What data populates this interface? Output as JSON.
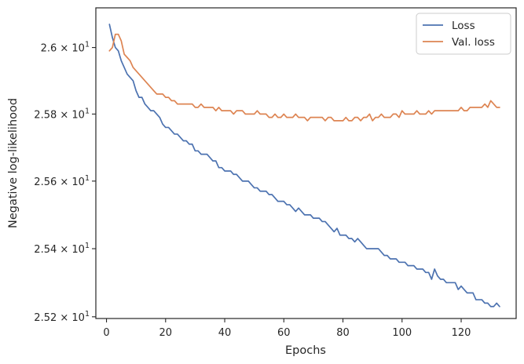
{
  "chart_data": {
    "type": "line",
    "xlabel": "Epochs",
    "ylabel": "Negative log-likelihood",
    "xlim": [
      -3.6,
      138.6
    ],
    "ylim": [
      25.195,
      26.12
    ],
    "y_scale": "log",
    "grid": false,
    "legend_position": "top-right",
    "x_ticks": [
      0,
      20,
      40,
      60,
      80,
      100,
      120
    ],
    "y_ticks": [
      {
        "value": 25.2,
        "mantissa": "2.52",
        "exponent": "1"
      },
      {
        "value": 25.4,
        "mantissa": "2.54",
        "exponent": "1"
      },
      {
        "value": 25.6,
        "mantissa": "2.56",
        "exponent": "1"
      },
      {
        "value": 25.8,
        "mantissa": "2.58",
        "exponent": "1"
      },
      {
        "value": 26.0,
        "mantissa": "2.6",
        "exponent": "1"
      }
    ],
    "series": [
      {
        "name": "Loss",
        "color": "#4c72b0",
        "points": [
          [
            1,
            26.07
          ],
          [
            2,
            26.03
          ],
          [
            3,
            26.0
          ],
          [
            4,
            25.99
          ],
          [
            5,
            25.96
          ],
          [
            6,
            25.94
          ],
          [
            7,
            25.92
          ],
          [
            8,
            25.91
          ],
          [
            9,
            25.9
          ],
          [
            10,
            25.87
          ],
          [
            11,
            25.85
          ],
          [
            12,
            25.85
          ],
          [
            13,
            25.83
          ],
          [
            14,
            25.82
          ],
          [
            15,
            25.81
          ],
          [
            16,
            25.81
          ],
          [
            17,
            25.8
          ],
          [
            18,
            25.79
          ],
          [
            19,
            25.77
          ],
          [
            20,
            25.76
          ],
          [
            21,
            25.76
          ],
          [
            22,
            25.75
          ],
          [
            23,
            25.74
          ],
          [
            24,
            25.74
          ],
          [
            25,
            25.73
          ],
          [
            26,
            25.72
          ],
          [
            27,
            25.72
          ],
          [
            28,
            25.71
          ],
          [
            29,
            25.71
          ],
          [
            30,
            25.69
          ],
          [
            31,
            25.69
          ],
          [
            32,
            25.68
          ],
          [
            33,
            25.68
          ],
          [
            34,
            25.68
          ],
          [
            35,
            25.67
          ],
          [
            36,
            25.66
          ],
          [
            37,
            25.66
          ],
          [
            38,
            25.64
          ],
          [
            39,
            25.64
          ],
          [
            40,
            25.63
          ],
          [
            41,
            25.63
          ],
          [
            42,
            25.63
          ],
          [
            43,
            25.62
          ],
          [
            44,
            25.62
          ],
          [
            45,
            25.61
          ],
          [
            46,
            25.6
          ],
          [
            47,
            25.6
          ],
          [
            48,
            25.6
          ],
          [
            49,
            25.59
          ],
          [
            50,
            25.58
          ],
          [
            51,
            25.58
          ],
          [
            52,
            25.57
          ],
          [
            53,
            25.57
          ],
          [
            54,
            25.57
          ],
          [
            55,
            25.56
          ],
          [
            56,
            25.56
          ],
          [
            57,
            25.55
          ],
          [
            58,
            25.54
          ],
          [
            59,
            25.54
          ],
          [
            60,
            25.54
          ],
          [
            61,
            25.53
          ],
          [
            62,
            25.53
          ],
          [
            63,
            25.52
          ],
          [
            64,
            25.51
          ],
          [
            65,
            25.52
          ],
          [
            66,
            25.51
          ],
          [
            67,
            25.5
          ],
          [
            68,
            25.5
          ],
          [
            69,
            25.5
          ],
          [
            70,
            25.49
          ],
          [
            71,
            25.49
          ],
          [
            72,
            25.49
          ],
          [
            73,
            25.48
          ],
          [
            74,
            25.48
          ],
          [
            75,
            25.47
          ],
          [
            76,
            25.46
          ],
          [
            77,
            25.45
          ],
          [
            78,
            25.46
          ],
          [
            79,
            25.44
          ],
          [
            80,
            25.44
          ],
          [
            81,
            25.44
          ],
          [
            82,
            25.43
          ],
          [
            83,
            25.43
          ],
          [
            84,
            25.42
          ],
          [
            85,
            25.43
          ],
          [
            86,
            25.42
          ],
          [
            87,
            25.41
          ],
          [
            88,
            25.4
          ],
          [
            89,
            25.4
          ],
          [
            90,
            25.4
          ],
          [
            91,
            25.4
          ],
          [
            92,
            25.4
          ],
          [
            93,
            25.39
          ],
          [
            94,
            25.38
          ],
          [
            95,
            25.38
          ],
          [
            96,
            25.37
          ],
          [
            97,
            25.37
          ],
          [
            98,
            25.37
          ],
          [
            99,
            25.36
          ],
          [
            100,
            25.36
          ],
          [
            101,
            25.36
          ],
          [
            102,
            25.35
          ],
          [
            103,
            25.35
          ],
          [
            104,
            25.35
          ],
          [
            105,
            25.34
          ],
          [
            106,
            25.34
          ],
          [
            107,
            25.34
          ],
          [
            108,
            25.33
          ],
          [
            109,
            25.33
          ],
          [
            110,
            25.31
          ],
          [
            111,
            25.34
          ],
          [
            112,
            25.32
          ],
          [
            113,
            25.31
          ],
          [
            114,
            25.31
          ],
          [
            115,
            25.3
          ],
          [
            116,
            25.3
          ],
          [
            117,
            25.3
          ],
          [
            118,
            25.3
          ],
          [
            119,
            25.28
          ],
          [
            120,
            25.29
          ],
          [
            121,
            25.28
          ],
          [
            122,
            25.27
          ],
          [
            123,
            25.27
          ],
          [
            124,
            25.27
          ],
          [
            125,
            25.25
          ],
          [
            126,
            25.25
          ],
          [
            127,
            25.25
          ],
          [
            128,
            25.24
          ],
          [
            129,
            25.24
          ],
          [
            130,
            25.23
          ],
          [
            131,
            25.23
          ],
          [
            132,
            25.24
          ],
          [
            133,
            25.23
          ]
        ]
      },
      {
        "name": "Val. loss",
        "color": "#dd8452",
        "points": [
          [
            1,
            25.99
          ],
          [
            2,
            26.0
          ],
          [
            3,
            26.04
          ],
          [
            4,
            26.04
          ],
          [
            5,
            26.02
          ],
          [
            6,
            25.98
          ],
          [
            7,
            25.97
          ],
          [
            8,
            25.96
          ],
          [
            9,
            25.94
          ],
          [
            10,
            25.93
          ],
          [
            11,
            25.92
          ],
          [
            12,
            25.91
          ],
          [
            13,
            25.9
          ],
          [
            14,
            25.89
          ],
          [
            15,
            25.88
          ],
          [
            16,
            25.87
          ],
          [
            17,
            25.86
          ],
          [
            18,
            25.86
          ],
          [
            19,
            25.86
          ],
          [
            20,
            25.85
          ],
          [
            21,
            25.85
          ],
          [
            22,
            25.84
          ],
          [
            23,
            25.84
          ],
          [
            24,
            25.83
          ],
          [
            25,
            25.83
          ],
          [
            26,
            25.83
          ],
          [
            27,
            25.83
          ],
          [
            28,
            25.83
          ],
          [
            29,
            25.83
          ],
          [
            30,
            25.82
          ],
          [
            31,
            25.82
          ],
          [
            32,
            25.83
          ],
          [
            33,
            25.82
          ],
          [
            34,
            25.82
          ],
          [
            35,
            25.82
          ],
          [
            36,
            25.82
          ],
          [
            37,
            25.81
          ],
          [
            38,
            25.82
          ],
          [
            39,
            25.81
          ],
          [
            40,
            25.81
          ],
          [
            41,
            25.81
          ],
          [
            42,
            25.81
          ],
          [
            43,
            25.8
          ],
          [
            44,
            25.81
          ],
          [
            45,
            25.81
          ],
          [
            46,
            25.81
          ],
          [
            47,
            25.8
          ],
          [
            48,
            25.8
          ],
          [
            49,
            25.8
          ],
          [
            50,
            25.8
          ],
          [
            51,
            25.81
          ],
          [
            52,
            25.8
          ],
          [
            53,
            25.8
          ],
          [
            54,
            25.8
          ],
          [
            55,
            25.79
          ],
          [
            56,
            25.79
          ],
          [
            57,
            25.8
          ],
          [
            58,
            25.79
          ],
          [
            59,
            25.79
          ],
          [
            60,
            25.8
          ],
          [
            61,
            25.79
          ],
          [
            62,
            25.79
          ],
          [
            63,
            25.79
          ],
          [
            64,
            25.8
          ],
          [
            65,
            25.79
          ],
          [
            66,
            25.79
          ],
          [
            67,
            25.79
          ],
          [
            68,
            25.78
          ],
          [
            69,
            25.79
          ],
          [
            70,
            25.79
          ],
          [
            71,
            25.79
          ],
          [
            72,
            25.79
          ],
          [
            73,
            25.79
          ],
          [
            74,
            25.78
          ],
          [
            75,
            25.79
          ],
          [
            76,
            25.79
          ],
          [
            77,
            25.78
          ],
          [
            78,
            25.78
          ],
          [
            79,
            25.78
          ],
          [
            80,
            25.78
          ],
          [
            81,
            25.79
          ],
          [
            82,
            25.78
          ],
          [
            83,
            25.78
          ],
          [
            84,
            25.79
          ],
          [
            85,
            25.79
          ],
          [
            86,
            25.78
          ],
          [
            87,
            25.79
          ],
          [
            88,
            25.79
          ],
          [
            89,
            25.8
          ],
          [
            90,
            25.78
          ],
          [
            91,
            25.79
          ],
          [
            92,
            25.79
          ],
          [
            93,
            25.8
          ],
          [
            94,
            25.79
          ],
          [
            95,
            25.79
          ],
          [
            96,
            25.79
          ],
          [
            97,
            25.8
          ],
          [
            98,
            25.8
          ],
          [
            99,
            25.79
          ],
          [
            100,
            25.81
          ],
          [
            101,
            25.8
          ],
          [
            102,
            25.8
          ],
          [
            103,
            25.8
          ],
          [
            104,
            25.8
          ],
          [
            105,
            25.81
          ],
          [
            106,
            25.8
          ],
          [
            107,
            25.8
          ],
          [
            108,
            25.8
          ],
          [
            109,
            25.81
          ],
          [
            110,
            25.8
          ],
          [
            111,
            25.81
          ],
          [
            112,
            25.81
          ],
          [
            113,
            25.81
          ],
          [
            114,
            25.81
          ],
          [
            115,
            25.81
          ],
          [
            116,
            25.81
          ],
          [
            117,
            25.81
          ],
          [
            118,
            25.81
          ],
          [
            119,
            25.81
          ],
          [
            120,
            25.82
          ],
          [
            121,
            25.81
          ],
          [
            122,
            25.81
          ],
          [
            123,
            25.82
          ],
          [
            124,
            25.82
          ],
          [
            125,
            25.82
          ],
          [
            126,
            25.82
          ],
          [
            127,
            25.82
          ],
          [
            128,
            25.83
          ],
          [
            129,
            25.82
          ],
          [
            130,
            25.84
          ],
          [
            131,
            25.83
          ],
          [
            132,
            25.82
          ],
          [
            133,
            25.82
          ]
        ]
      }
    ]
  }
}
